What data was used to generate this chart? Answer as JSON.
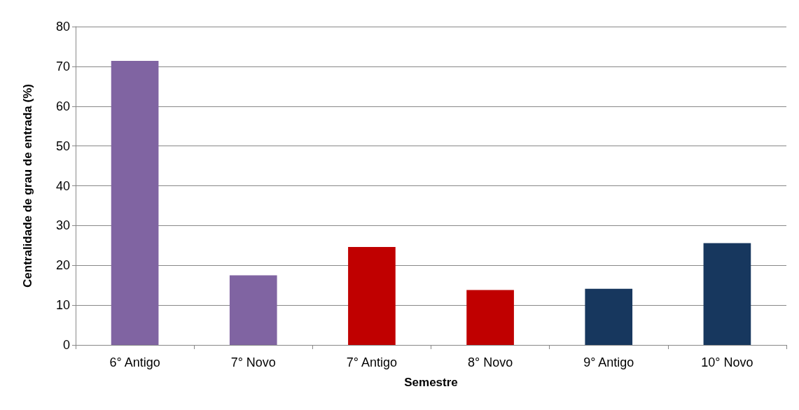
{
  "chart_data": {
    "type": "bar",
    "xlabel": "Semestre",
    "ylabel": "Centralidade de grau de entrada (%)",
    "categories": [
      "6° Antigo",
      "7° Novo",
      "7° Antigo",
      "8° Novo",
      "9° Antigo",
      "10° Novo"
    ],
    "values": [
      71.4,
      17.5,
      24.6,
      13.8,
      14.1,
      25.6
    ],
    "colors": [
      "#8064a2",
      "#8064a2",
      "#c00000",
      "#c00000",
      "#17375e",
      "#17375e"
    ],
    "ylim": [
      0,
      80
    ],
    "yticks": [
      0,
      10,
      20,
      30,
      40,
      50,
      60,
      70,
      80
    ],
    "grid": "y"
  }
}
